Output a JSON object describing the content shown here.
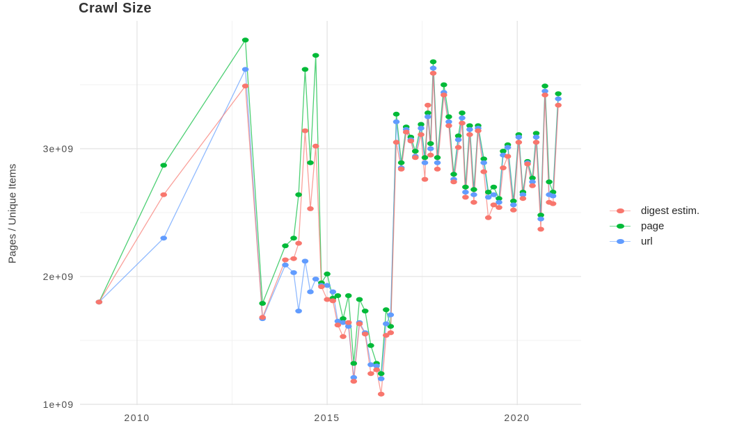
{
  "title": "Crawl Size",
  "y_axis": {
    "label": "Pages / Unique Items",
    "tick_labels": [
      "1e+09",
      "2e+09",
      "3e+09"
    ]
  },
  "x_axis": {
    "tick_labels": [
      "2010",
      "2015",
      "2020"
    ]
  },
  "legend": {
    "items": [
      {
        "label": "digest estim.",
        "color": "#F8766D"
      },
      {
        "label": "page",
        "color": "#00BA38"
      },
      {
        "label": "url",
        "color": "#619CFF"
      }
    ]
  },
  "chart_data": {
    "type": "line",
    "title": "Crawl Size",
    "xlabel": "",
    "ylabel": "Pages / Unique Items",
    "y_unit": "pages (value x 1e9)",
    "xlim": [
      2008.5,
      2021.68
    ],
    "ylim": [
      0.994,
      4.0
    ],
    "x_major_ticks": [
      2010,
      2015,
      2020
    ],
    "x_minor_ticks": [
      2012.5,
      2017.5
    ],
    "y_major_ticks": [
      1,
      2,
      3
    ],
    "y_tick_labels": [
      "1e+09",
      "2e+09",
      "3e+09"
    ],
    "y_minor_ticks": [
      1.5,
      2.5,
      3.5
    ],
    "grid": true,
    "legend_position": "right",
    "x": [
      2009.0,
      2010.7,
      2012.85,
      2013.3,
      2013.9,
      2014.12,
      2014.25,
      2014.42,
      2014.56,
      2014.7,
      2014.85,
      2015.0,
      2015.15,
      2015.28,
      2015.42,
      2015.56,
      2015.7,
      2015.85,
      2016.0,
      2016.15,
      2016.3,
      2016.42,
      2016.55,
      2016.67,
      2016.82,
      2016.95,
      2017.08,
      2017.2,
      2017.32,
      2017.47,
      2017.57,
      2017.65,
      2017.72,
      2017.79,
      2017.9,
      2018.07,
      2018.2,
      2018.33,
      2018.45,
      2018.55,
      2018.64,
      2018.75,
      2018.86,
      2018.97,
      2019.12,
      2019.24,
      2019.38,
      2019.52,
      2019.63,
      2019.75,
      2019.9,
      2020.04,
      2020.15,
      2020.27,
      2020.4,
      2020.5,
      2020.62,
      2020.73,
      2020.84,
      2020.94,
      2021.08
    ],
    "series": [
      {
        "name": "digest estim.",
        "color": "#F8766D",
        "values": [
          1.8,
          2.64,
          3.49,
          1.68,
          2.13,
          2.14,
          2.26,
          3.14,
          2.53,
          3.02,
          1.92,
          1.82,
          1.81,
          1.62,
          1.53,
          1.64,
          1.18,
          1.63,
          1.55,
          1.24,
          1.27,
          1.08,
          1.54,
          1.56,
          3.05,
          2.84,
          3.13,
          3.06,
          2.93,
          3.11,
          2.76,
          3.34,
          2.95,
          3.59,
          2.84,
          3.42,
          3.18,
          2.74,
          3.01,
          3.2,
          2.62,
          3.11,
          2.58,
          3.14,
          2.82,
          2.46,
          2.56,
          2.54,
          2.85,
          2.94,
          2.52,
          3.05,
          2.61,
          2.88,
          2.71,
          3.05,
          2.37,
          3.42,
          2.58,
          2.57,
          3.34
        ]
      },
      {
        "name": "page",
        "color": "#00BA38",
        "values": [
          1.8,
          2.87,
          3.85,
          1.79,
          2.24,
          2.3,
          2.64,
          3.62,
          2.89,
          3.73,
          1.95,
          2.02,
          1.83,
          1.85,
          1.67,
          1.85,
          1.32,
          1.82,
          1.73,
          1.46,
          1.32,
          1.24,
          1.74,
          1.61,
          3.27,
          2.89,
          3.17,
          3.09,
          2.98,
          3.19,
          2.93,
          3.28,
          3.04,
          3.68,
          2.93,
          3.5,
          3.25,
          2.8,
          3.1,
          3.28,
          2.7,
          3.18,
          2.68,
          3.18,
          2.92,
          2.66,
          2.7,
          2.61,
          2.98,
          3.03,
          2.59,
          3.11,
          2.66,
          2.9,
          2.77,
          3.12,
          2.48,
          3.49,
          2.74,
          2.66,
          3.43
        ]
      },
      {
        "name": "url",
        "color": "#619CFF",
        "values": [
          1.8,
          2.3,
          3.62,
          1.67,
          2.09,
          2.03,
          1.73,
          2.12,
          1.88,
          1.98,
          1.93,
          1.93,
          1.88,
          1.65,
          1.64,
          1.61,
          1.21,
          1.64,
          1.56,
          1.31,
          1.3,
          1.2,
          1.63,
          1.7,
          3.21,
          2.85,
          3.15,
          3.07,
          2.94,
          3.16,
          2.89,
          3.25,
          3.0,
          3.63,
          2.89,
          3.44,
          3.21,
          2.76,
          3.07,
          3.24,
          2.66,
          3.15,
          2.64,
          3.16,
          2.89,
          2.62,
          2.64,
          2.58,
          2.95,
          3.01,
          2.56,
          3.09,
          2.64,
          2.89,
          2.74,
          3.09,
          2.45,
          3.45,
          2.64,
          2.63,
          3.39
        ]
      }
    ]
  }
}
